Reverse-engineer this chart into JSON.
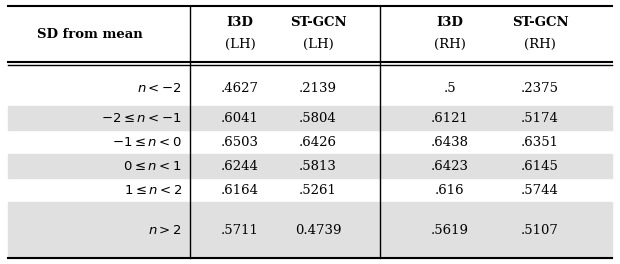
{
  "rows": [
    {
      "label": "$n < -2$",
      "vals": [
        ".4627",
        ".2139",
        ".5",
        ".2375"
      ],
      "shaded": false
    },
    {
      "label": "$-2 \\leq n < -1$",
      "vals": [
        ".6041",
        ".5804",
        ".6121",
        ".5174"
      ],
      "shaded": true
    },
    {
      "label": "$-1 \\leq n < 0$",
      "vals": [
        ".6503",
        ".6426",
        ".6438",
        ".6351"
      ],
      "shaded": false
    },
    {
      "label": "$0 \\leq n < 1$",
      "vals": [
        ".6244",
        ".5813",
        ".6423",
        ".6145"
      ],
      "shaded": true
    },
    {
      "label": "$1 \\leq n < 2$",
      "vals": [
        ".6164",
        ".5261",
        ".616",
        ".5744"
      ],
      "shaded": false
    },
    {
      "label": "$n > 2$",
      "vals": [
        ".5711",
        "0.4739",
        ".5619",
        ".5107"
      ],
      "shaded": true
    }
  ],
  "shaded_color": "#e0e0e0",
  "bg_color": "#ffffff",
  "text_color": "#000000",
  "figsize": [
    6.2,
    2.64
  ],
  "dpi": 100,
  "header_label": "SD from mean",
  "col1_top": "I3D",
  "col1_bot": "(LH)",
  "col2_top": "ST-GCN",
  "col2_bot": "(LH)",
  "col3_top": "I3D",
  "col3_bot": "(RH)",
  "col4_top": "ST-GCN",
  "col4_bot": "(RH)"
}
